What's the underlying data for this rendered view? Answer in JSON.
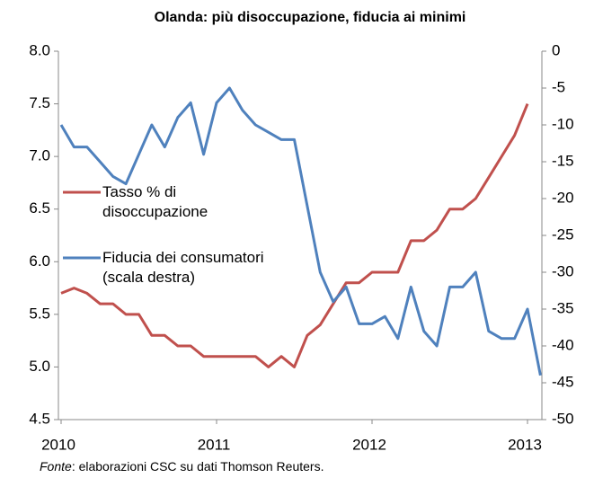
{
  "chart_data": {
    "type": "line",
    "title": "Olanda: più disoccupazione, fiducia ai minimi",
    "categories": [
      "2010",
      null,
      null,
      null,
      null,
      null,
      null,
      null,
      null,
      null,
      null,
      null,
      "2011",
      null,
      null,
      null,
      null,
      null,
      null,
      null,
      null,
      null,
      null,
      null,
      "2012",
      null,
      null,
      null,
      null,
      null,
      null,
      null,
      null,
      null,
      null,
      null,
      "2013",
      null
    ],
    "series": [
      {
        "name": "Tasso % di disoccupazione",
        "color": "#c0504d",
        "values": [
          5.7,
          5.75,
          5.7,
          5.6,
          5.6,
          5.5,
          5.5,
          5.3,
          5.3,
          5.2,
          5.2,
          5.1,
          5.1,
          5.1,
          5.1,
          5.1,
          5.0,
          5.1,
          5.0,
          5.3,
          5.4,
          5.6,
          5.8,
          5.8,
          5.9,
          5.9,
          5.9,
          6.2,
          6.2,
          6.3,
          6.5,
          6.5,
          6.6,
          6.8,
          7.0,
          7.2,
          7.5,
          null
        ]
      },
      {
        "name": "Fiducia dei consumatori (scala destra)",
        "color": "#4f81bd",
        "axis": "y2",
        "values": [
          -10,
          -13,
          -13,
          -15,
          -17,
          -18,
          -14,
          -10,
          -13,
          -9,
          -7,
          -14,
          -7,
          -5,
          -8,
          -10,
          -11,
          -12,
          -12,
          -21,
          -30,
          -34,
          -32,
          -37,
          -37,
          -36,
          -39,
          -32,
          -38,
          -40,
          -32,
          -32,
          -30,
          -38,
          -39,
          -39,
          -35,
          -44
        ]
      }
    ],
    "ylim": [
      4.5,
      8.0
    ],
    "yticks": [
      {
        "value": 4.5,
        "label": "4.5"
      },
      {
        "value": 5.0,
        "label": "5.0"
      },
      {
        "value": 5.5,
        "label": "5.5"
      },
      {
        "value": 6.0,
        "label": "6.0"
      },
      {
        "value": 6.5,
        "label": "6.5"
      },
      {
        "value": 7.0,
        "label": "7.0"
      },
      {
        "value": 7.5,
        "label": "7.5"
      },
      {
        "value": 8.0,
        "label": "8.0"
      }
    ],
    "y2lim": [
      -50,
      0
    ],
    "y2ticks": [
      -50,
      -45,
      -40,
      -35,
      -30,
      -25,
      -20,
      -15,
      -10,
      -5,
      0
    ],
    "grid": false,
    "legend": "left",
    "source_label": "Fonte",
    "source": ": elaborazioni  CSC su dati Thomson Reuters."
  }
}
